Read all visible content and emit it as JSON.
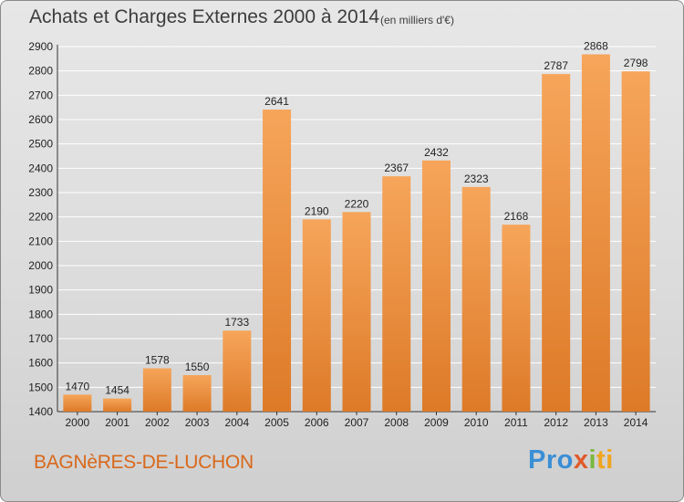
{
  "header": {
    "title": "Achats et Charges Externes 2000 à 2014",
    "subtitle": "(en milliers d'€)"
  },
  "footer": {
    "commune": "BAGNèRES-DE-LUCHON",
    "logo_parts": [
      "Pro",
      "x",
      "i",
      "ti"
    ]
  },
  "colors": {
    "bar_top": "#f6a55a",
    "bar_bottom": "#dd7a28",
    "grid": "#ffffff",
    "accent": "#d9681a"
  },
  "chart_data": {
    "type": "bar",
    "title": "Achats et Charges Externes 2000 à 2014",
    "subtitle": "(en milliers d'€)",
    "xlabel": "",
    "ylabel": "",
    "categories": [
      "2000",
      "2001",
      "2002",
      "2003",
      "2004",
      "2005",
      "2006",
      "2007",
      "2008",
      "2009",
      "2010",
      "2011",
      "2012",
      "2013",
      "2014"
    ],
    "values": [
      1470,
      1454,
      1578,
      1550,
      1733,
      2641,
      2190,
      2220,
      2367,
      2432,
      2323,
      2168,
      2787,
      2868,
      2798
    ],
    "ylim": [
      1400,
      2900
    ],
    "yticks": [
      1400,
      1500,
      1600,
      1700,
      1800,
      1900,
      2000,
      2100,
      2200,
      2300,
      2400,
      2500,
      2600,
      2700,
      2800,
      2900
    ],
    "grid": true,
    "data_labels": true
  }
}
